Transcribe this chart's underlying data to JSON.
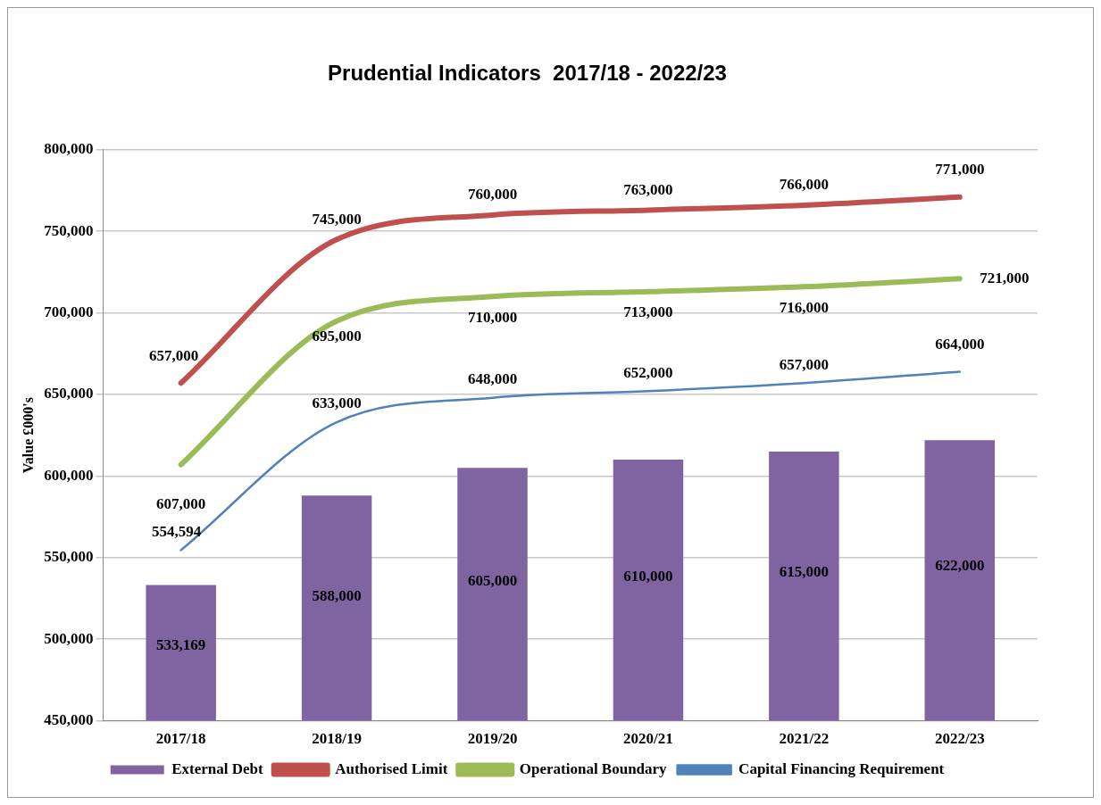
{
  "chart_data": {
    "type": "bar",
    "title": "Prudential Indicators  2017/18 - 2022/23",
    "ylabel": "Value £000's",
    "categories": [
      "2017/18",
      "2018/19",
      "2019/20",
      "2020/21",
      "2021/22",
      "2022/23"
    ],
    "series": [
      {
        "name": "External Debt",
        "color": "#8064a2",
        "values": [
          533169,
          588000,
          605000,
          610000,
          615000,
          622000
        ],
        "value_labels": [
          "533,169",
          "588,000",
          "605,000",
          "610,000",
          "615,000",
          "622,000"
        ]
      },
      {
        "name": "Authorised Limit",
        "type": "line",
        "color": "#c0504d",
        "values": [
          657000,
          745000,
          760000,
          763000,
          766000,
          771000
        ],
        "value_labels": [
          "657,000",
          "745,000",
          "760,000",
          "763,000",
          "766,000",
          "771,000"
        ]
      },
      {
        "name": "Operational Boundary",
        "type": "line",
        "color": "#9bbb59",
        "values": [
          607000,
          695000,
          710000,
          713000,
          716000,
          721000
        ],
        "value_labels": [
          "607,000",
          "695,000",
          "710,000",
          "713,000",
          "716,000",
          "721,000"
        ]
      },
      {
        "name": "Capital Financing Requirement",
        "type": "line",
        "color": "#4f81bd",
        "values": [
          554594,
          633000,
          648000,
          652000,
          657000,
          664000
        ],
        "value_labels": [
          "554,594",
          "633,000",
          "648,000",
          "652,000",
          "657,000",
          "664,000"
        ]
      }
    ],
    "ylim": [
      450000,
      800000
    ],
    "yticks": [
      {
        "value": 450000,
        "label": "450,000"
      },
      {
        "value": 500000,
        "label": "500,000"
      },
      {
        "value": 550000,
        "label": "550,000"
      },
      {
        "value": 600000,
        "label": "600,000"
      },
      {
        "value": 650000,
        "label": "650,000"
      },
      {
        "value": 700000,
        "label": "700,000"
      },
      {
        "value": 750000,
        "label": "750,000"
      },
      {
        "value": 800000,
        "label": "800,000"
      }
    ],
    "grid": "y",
    "legend": "bottom"
  }
}
